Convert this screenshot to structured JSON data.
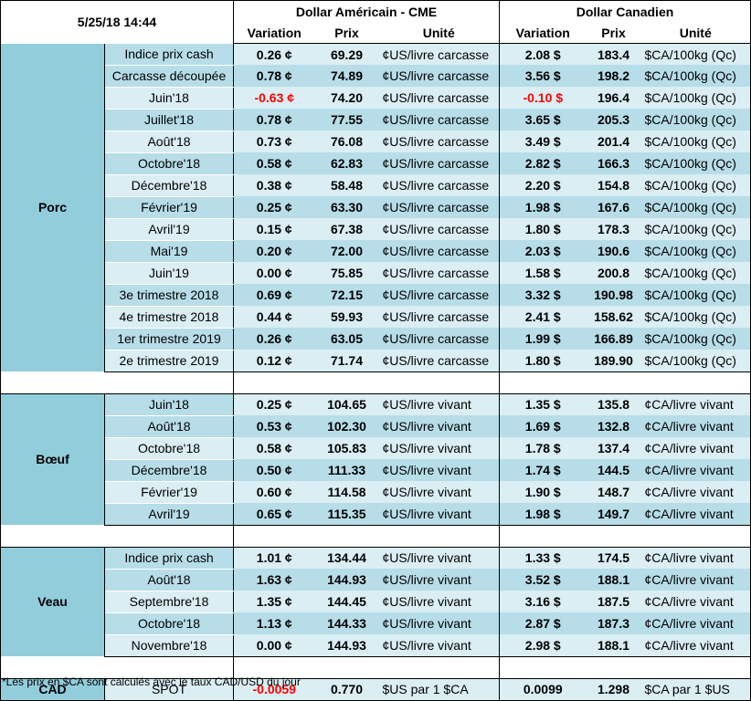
{
  "header": {
    "timestamp": "5/25/18 14:44",
    "us_group": "Dollar Américain - CME",
    "ca_group": "Dollar Canadien",
    "col_variation": "Variation",
    "col_prix": "Prix",
    "col_unite": "Unité"
  },
  "porc": {
    "label": "Porc",
    "rows": [
      {
        "name": "Indice prix cash",
        "us_var": "0.26 ¢",
        "us_prix": "69.29",
        "us_unit": "¢US/livre carcasse",
        "ca_var": "2.08 $",
        "ca_prix": "183.4",
        "ca_unit": "$CA/100kg (Qc)"
      },
      {
        "name": "Carcasse découpée",
        "us_var": "0.78 ¢",
        "us_prix": "74.89",
        "us_unit": "¢US/livre carcasse",
        "ca_var": "3.56 $",
        "ca_prix": "198.2",
        "ca_unit": "$CA/100kg (Qc)"
      },
      {
        "name": "Juin'18",
        "us_var": "-0.63 ¢",
        "us_prix": "74.20",
        "us_unit": "¢US/livre carcasse",
        "ca_var": "-0.10 $",
        "ca_prix": "196.4",
        "ca_unit": "$CA/100kg (Qc)"
      },
      {
        "name": "Juillet'18",
        "us_var": "0.78 ¢",
        "us_prix": "77.55",
        "us_unit": "¢US/livre carcasse",
        "ca_var": "3.65 $",
        "ca_prix": "205.3",
        "ca_unit": "$CA/100kg (Qc)"
      },
      {
        "name": "Août'18",
        "us_var": "0.73 ¢",
        "us_prix": "76.08",
        "us_unit": "¢US/livre carcasse",
        "ca_var": "3.49 $",
        "ca_prix": "201.4",
        "ca_unit": "$CA/100kg (Qc)"
      },
      {
        "name": "Octobre'18",
        "us_var": "0.58 ¢",
        "us_prix": "62.83",
        "us_unit": "¢US/livre carcasse",
        "ca_var": "2.82 $",
        "ca_prix": "166.3",
        "ca_unit": "$CA/100kg (Qc)"
      },
      {
        "name": "Décembre'18",
        "us_var": "0.38 ¢",
        "us_prix": "58.48",
        "us_unit": "¢US/livre carcasse",
        "ca_var": "2.20 $",
        "ca_prix": "154.8",
        "ca_unit": "$CA/100kg (Qc)"
      },
      {
        "name": "Février'19",
        "us_var": "0.25 ¢",
        "us_prix": "63.30",
        "us_unit": "¢US/livre carcasse",
        "ca_var": "1.98 $",
        "ca_prix": "167.6",
        "ca_unit": "$CA/100kg (Qc)"
      },
      {
        "name": "Avril'19",
        "us_var": "0.15 ¢",
        "us_prix": "67.38",
        "us_unit": "¢US/livre carcasse",
        "ca_var": "1.80 $",
        "ca_prix": "178.3",
        "ca_unit": "$CA/100kg (Qc)"
      },
      {
        "name": "Mai'19",
        "us_var": "0.20 ¢",
        "us_prix": "72.00",
        "us_unit": "¢US/livre carcasse",
        "ca_var": "2.03 $",
        "ca_prix": "190.6",
        "ca_unit": "$CA/100kg (Qc)"
      },
      {
        "name": "Juin'19",
        "us_var": "0.00 ¢",
        "us_prix": "75.85",
        "us_unit": "¢US/livre carcasse",
        "ca_var": "1.58 $",
        "ca_prix": "200.8",
        "ca_unit": "$CA/100kg (Qc)"
      },
      {
        "name": "3e trimestre 2018",
        "us_var": "0.69 ¢",
        "us_prix": "72.15",
        "us_unit": "¢US/livre carcasse",
        "ca_var": "3.32 $",
        "ca_prix": "190.98",
        "ca_unit": "$CA/100kg (Qc)"
      },
      {
        "name": "4e trimestre 2018",
        "us_var": "0.44 ¢",
        "us_prix": "59.93",
        "us_unit": "¢US/livre carcasse",
        "ca_var": "2.41 $",
        "ca_prix": "158.62",
        "ca_unit": "$CA/100kg (Qc)"
      },
      {
        "name": "1er trimestre 2019",
        "us_var": "0.26 ¢",
        "us_prix": "63.05",
        "us_unit": "¢US/livre carcasse",
        "ca_var": "1.99 $",
        "ca_prix": "166.89",
        "ca_unit": "$CA/100kg (Qc)"
      },
      {
        "name": "2e trimestre 2019",
        "us_var": "0.12 ¢",
        "us_prix": "71.74",
        "us_unit": "¢US/livre carcasse",
        "ca_var": "1.80 $",
        "ca_prix": "189.90",
        "ca_unit": "$CA/100kg (Qc)"
      }
    ]
  },
  "boeuf": {
    "label": "Bœuf",
    "rows": [
      {
        "name": "Juin'18",
        "us_var": "0.25 ¢",
        "us_prix": "104.65",
        "us_unit": "¢US/livre vivant",
        "ca_var": "1.35 $",
        "ca_prix": "135.8",
        "ca_unit": "¢CA/livre vivant"
      },
      {
        "name": "Août'18",
        "us_var": "0.53 ¢",
        "us_prix": "102.30",
        "us_unit": "¢US/livre vivant",
        "ca_var": "1.69 $",
        "ca_prix": "132.8",
        "ca_unit": "¢CA/livre vivant"
      },
      {
        "name": "Octobre'18",
        "us_var": "0.58 ¢",
        "us_prix": "105.83",
        "us_unit": "¢US/livre vivant",
        "ca_var": "1.78 $",
        "ca_prix": "137.4",
        "ca_unit": "¢CA/livre vivant"
      },
      {
        "name": "Décembre'18",
        "us_var": "0.50 ¢",
        "us_prix": "111.33",
        "us_unit": "¢US/livre vivant",
        "ca_var": "1.74 $",
        "ca_prix": "144.5",
        "ca_unit": "¢CA/livre vivant"
      },
      {
        "name": "Février'19",
        "us_var": "0.60 ¢",
        "us_prix": "114.58",
        "us_unit": "¢US/livre vivant",
        "ca_var": "1.90 $",
        "ca_prix": "148.7",
        "ca_unit": "¢CA/livre vivant"
      },
      {
        "name": "Avril'19",
        "us_var": "0.65 ¢",
        "us_prix": "115.35",
        "us_unit": "¢US/livre vivant",
        "ca_var": "1.98 $",
        "ca_prix": "149.7",
        "ca_unit": "¢CA/livre vivant"
      }
    ]
  },
  "veau": {
    "label": "Veau",
    "rows": [
      {
        "name": "Indice prix cash",
        "us_var": "1.01 ¢",
        "us_prix": "134.44",
        "us_unit": "¢US/livre vivant",
        "ca_var": "1.33 $",
        "ca_prix": "174.5",
        "ca_unit": "¢CA/livre vivant"
      },
      {
        "name": "Août'18",
        "us_var": "1.63 ¢",
        "us_prix": "144.93",
        "us_unit": "¢US/livre vivant",
        "ca_var": "3.52 $",
        "ca_prix": "188.1",
        "ca_unit": "¢CA/livre vivant"
      },
      {
        "name": "Septembre'18",
        "us_var": "1.35 ¢",
        "us_prix": "144.45",
        "us_unit": "¢US/livre vivant",
        "ca_var": "3.16 $",
        "ca_prix": "187.5",
        "ca_unit": "¢CA/livre vivant"
      },
      {
        "name": "Octobre'18",
        "us_var": "1.13 ¢",
        "us_prix": "144.33",
        "us_unit": "¢US/livre vivant",
        "ca_var": "2.87 $",
        "ca_prix": "187.3",
        "ca_unit": "¢CA/livre vivant"
      },
      {
        "name": "Novembre'18",
        "us_var": "0.00 ¢",
        "us_prix": "144.93",
        "us_unit": "¢US/livre vivant",
        "ca_var": "2.98 $",
        "ca_prix": "188.1",
        "ca_unit": "¢CA/livre vivant"
      }
    ]
  },
  "cad": {
    "label": "CAD",
    "name": "SPOT",
    "us_var": "-0.0059",
    "us_prix": "0.770",
    "us_unit": "$US par 1 $CA",
    "ca_var": "0.0099",
    "ca_prix": "1.298",
    "ca_unit": "$CA par 1 $US"
  },
  "footnote": "*Les  prix en $CA sont calculés avec le taux CAD/USD du jour",
  "colors": {
    "positive": "#00b050",
    "negative": "#ff0000",
    "section_bg": "#92cddc",
    "row_light": "#daeef3",
    "row_dark": "#b7dde8"
  }
}
